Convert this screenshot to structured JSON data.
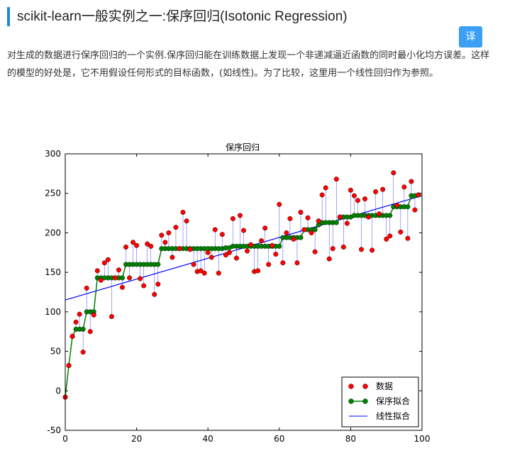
{
  "page": {
    "title": "scikit-learn一般实例之一:保序回归(Isotonic Regression)",
    "translate_button": "译",
    "description": "对生成的数据进行保序回归的一个实例.保序回归能在训练数据上发现一个非递减逼近函数的同时最小化均方误差。这样的模型的好处是，它不用假设任何形式的目标函数，(如线性)。为了比较，这里用一个线性回归作为参照。"
  },
  "colors": {
    "accent": "#1e88d8",
    "data": "#ff0000",
    "isotonic": "#008000",
    "linear": "#0000ff",
    "button": "#3a9ff5"
  },
  "chart_data": {
    "type": "scatter",
    "title": "保序回归",
    "xlabel": "",
    "ylabel": "",
    "xlim": [
      0,
      100
    ],
    "ylim": [
      -50,
      300
    ],
    "xticks": [
      0,
      20,
      40,
      60,
      80,
      100
    ],
    "yticks": [
      -50,
      0,
      50,
      100,
      150,
      200,
      250,
      300
    ],
    "grid": false,
    "legend_position": "lower-right",
    "series": [
      {
        "name": "数据",
        "kind": "points",
        "color": "#ff0000",
        "x": [
          0,
          1,
          2,
          3,
          4,
          5,
          6,
          7,
          8,
          9,
          10,
          11,
          12,
          13,
          14,
          15,
          16,
          17,
          18,
          19,
          20,
          21,
          22,
          23,
          24,
          25,
          26,
          27,
          28,
          29,
          30,
          31,
          32,
          33,
          34,
          35,
          36,
          37,
          38,
          39,
          40,
          41,
          42,
          43,
          44,
          45,
          46,
          47,
          48,
          49,
          50,
          51,
          52,
          53,
          54,
          55,
          56,
          57,
          58,
          59,
          60,
          61,
          62,
          63,
          64,
          65,
          66,
          67,
          68,
          69,
          70,
          71,
          72,
          73,
          74,
          75,
          76,
          77,
          78,
          79,
          80,
          81,
          82,
          83,
          84,
          85,
          86,
          87,
          88,
          89,
          90,
          91,
          92,
          93,
          94,
          95,
          96,
          97,
          98,
          99
        ],
        "y": [
          -8,
          32,
          69,
          87,
          97,
          49,
          130,
          75,
          96,
          152,
          140,
          162,
          166,
          94,
          143,
          153,
          131,
          182,
          143,
          188,
          184,
          142,
          133,
          186,
          183,
          122,
          135,
          197,
          188,
          200,
          169,
          207,
          180,
          226,
          215,
          179,
          160,
          151,
          152,
          149,
          175,
          169,
          204,
          149,
          198,
          172,
          175,
          218,
          168,
          222,
          203,
          177,
          185,
          151,
          152,
          190,
          206,
          160,
          184,
          173,
          236,
          162,
          200,
          218,
          192,
          162,
          226,
          204,
          219,
          200,
          176,
          215,
          248,
          257,
          167,
          180,
          268,
          220,
          182,
          212,
          254,
          247,
          241,
          179,
          243,
          220,
          178,
          252,
          224,
          255,
          192,
          196,
          276,
          235,
          201,
          258,
          193,
          265,
          229,
          248
        ]
      },
      {
        "name": "保序拟合",
        "kind": "line-markers",
        "color": "#008000",
        "x": [
          0,
          1,
          2,
          3,
          4,
          5,
          6,
          7,
          8,
          9,
          10,
          11,
          12,
          13,
          14,
          15,
          16,
          17,
          18,
          19,
          20,
          21,
          22,
          23,
          24,
          25,
          26,
          27,
          28,
          29,
          30,
          31,
          32,
          33,
          34,
          35,
          36,
          37,
          38,
          39,
          40,
          41,
          42,
          43,
          44,
          45,
          46,
          47,
          48,
          49,
          50,
          51,
          52,
          53,
          54,
          55,
          56,
          57,
          58,
          59,
          60,
          61,
          62,
          63,
          64,
          65,
          66,
          67,
          68,
          69,
          70,
          71,
          72,
          73,
          74,
          75,
          76,
          77,
          78,
          79,
          80,
          81,
          82,
          83,
          84,
          85,
          86,
          87,
          88,
          89,
          90,
          91,
          92,
          93,
          94,
          95,
          96,
          97,
          98,
          99
        ],
        "y": [
          -8,
          32,
          69,
          78,
          78,
          78,
          100,
          100,
          100,
          143,
          143,
          143,
          143,
          143,
          143,
          143,
          143,
          160,
          160,
          160,
          160,
          160,
          160,
          160,
          160,
          160,
          160,
          180,
          180,
          180,
          180,
          180,
          180,
          180,
          180,
          180,
          180,
          180,
          180,
          180,
          180,
          180,
          180,
          180,
          180,
          181,
          181,
          183,
          183,
          183,
          183,
          183,
          183,
          183,
          183,
          183,
          183,
          183,
          183,
          183,
          183,
          194,
          194,
          194,
          194,
          194,
          194,
          204,
          204,
          204,
          204,
          210,
          213,
          213,
          213,
          213,
          213,
          220,
          220,
          220,
          220,
          222,
          222,
          222,
          222,
          222,
          222,
          222,
          222,
          222,
          222,
          222,
          233,
          233,
          233,
          233,
          233,
          247,
          247,
          248
        ]
      },
      {
        "name": "线性拟合",
        "kind": "line",
        "color": "#0000ff",
        "x": [
          0,
          100
        ],
        "y": [
          115,
          247
        ]
      }
    ]
  }
}
